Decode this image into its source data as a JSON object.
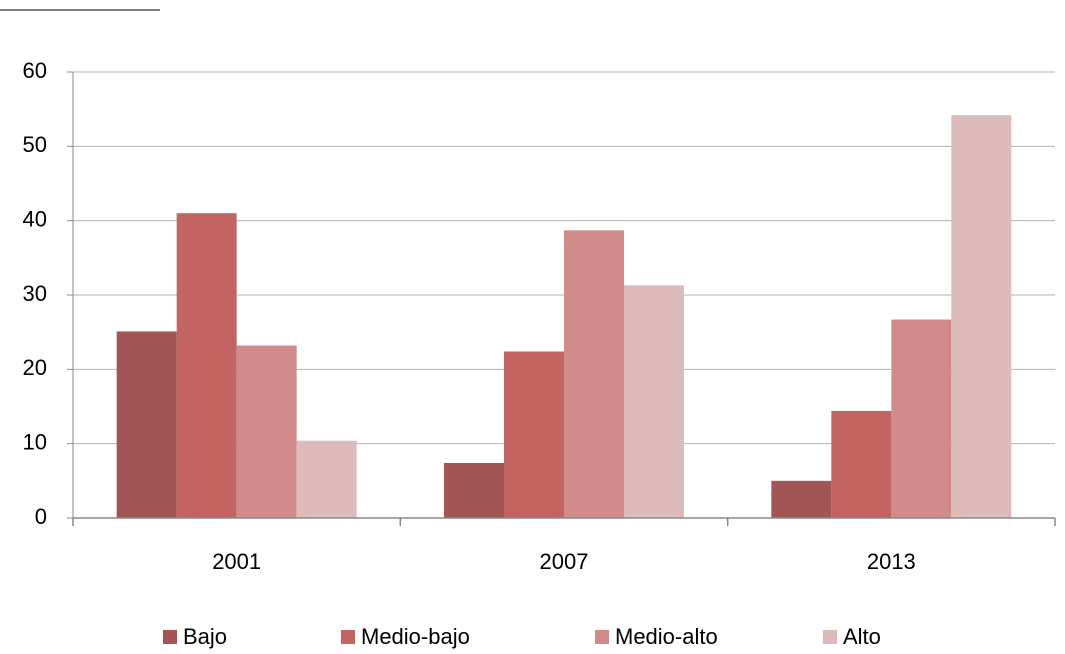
{
  "chart_data": {
    "type": "bar",
    "categories": [
      "2001",
      "2007",
      "2013"
    ],
    "series": [
      {
        "name": "Bajo",
        "color": "#a15655",
        "values": [
          25.1,
          7.4,
          5
        ]
      },
      {
        "name": "Medio-bajo",
        "color": "#c26462",
        "values": [
          41,
          22.4,
          14.4
        ]
      },
      {
        "name": "Medio-alto",
        "color": "#d18b8b",
        "values": [
          23.2,
          38.7,
          26.7
        ]
      },
      {
        "name": "Alto",
        "color": "#ddbbba",
        "values": [
          10.4,
          31.3,
          54.2
        ]
      }
    ],
    "ylim": [
      0,
      60
    ],
    "yticks": [
      0,
      10,
      20,
      30,
      40,
      50,
      60
    ],
    "grid": true,
    "legend": "bottom"
  }
}
